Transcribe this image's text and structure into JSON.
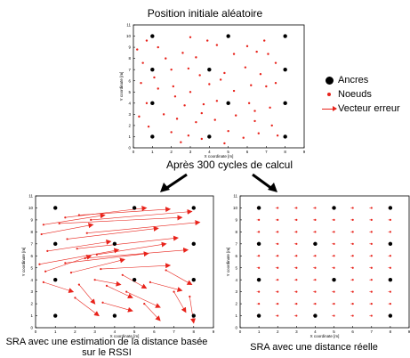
{
  "title_top": "Position initiale aléatoire",
  "caption_mid": "Après 300 cycles de calcul",
  "caption_left": "SRA avec une estimation de la distance basée sur le RSSI",
  "caption_right": "SRA avec une distance réelle",
  "legend": {
    "anchors": "Ancres",
    "nodes": "Noeuds",
    "error_vector": "Vecteur erreur"
  },
  "colors": {
    "anchor": "#000000",
    "node": "#e8231b",
    "axis": "#000000"
  },
  "chart_data": [
    {
      "id": "top",
      "type": "scatter",
      "xlabel": "X coordinate [m]",
      "ylabel": "Y coordinate [m]",
      "xlim": [
        0,
        9
      ],
      "ylim": [
        0,
        11
      ],
      "xticks": [
        0,
        1,
        2,
        3,
        4,
        5,
        6,
        7,
        8,
        9
      ],
      "yticks": [
        0,
        1,
        2,
        3,
        4,
        5,
        6,
        7,
        8,
        9,
        10,
        11
      ],
      "anchors": [
        [
          1,
          10
        ],
        [
          5,
          10
        ],
        [
          8,
          10
        ],
        [
          1,
          7
        ],
        [
          4,
          7
        ],
        [
          8,
          7
        ],
        [
          1,
          4
        ],
        [
          5,
          4
        ],
        [
          8,
          4
        ],
        [
          1,
          1
        ],
        [
          4,
          1
        ],
        [
          8,
          1
        ]
      ],
      "nodes": [
        [
          0.2,
          8.8
        ],
        [
          0.7,
          9.6
        ],
        [
          1.3,
          9.0
        ],
        [
          2.6,
          8.5
        ],
        [
          3.3,
          8.1
        ],
        [
          3.9,
          9.6
        ],
        [
          4.4,
          9.2
        ],
        [
          6.0,
          9.1
        ],
        [
          6.5,
          8.6
        ],
        [
          7.1,
          8.4
        ],
        [
          0.5,
          7.6
        ],
        [
          2.0,
          7.0
        ],
        [
          2.9,
          7.1
        ],
        [
          3.5,
          6.5
        ],
        [
          4.8,
          6.7
        ],
        [
          5.9,
          7.2
        ],
        [
          6.7,
          6.6
        ],
        [
          7.5,
          7.6
        ],
        [
          0.4,
          5.8
        ],
        [
          1.3,
          5.3
        ],
        [
          2.1,
          5.5
        ],
        [
          3.0,
          5.0
        ],
        [
          4.0,
          5.7
        ],
        [
          5.3,
          5.1
        ],
        [
          6.2,
          5.6
        ],
        [
          7.0,
          5.5
        ],
        [
          7.5,
          5.8
        ],
        [
          0.7,
          4.0
        ],
        [
          2.2,
          4.6
        ],
        [
          2.7,
          3.8
        ],
        [
          3.7,
          3.9
        ],
        [
          4.4,
          4.2
        ],
        [
          6.1,
          4.0
        ],
        [
          7.2,
          3.6
        ],
        [
          0.3,
          2.8
        ],
        [
          1.6,
          3.0
        ],
        [
          2.3,
          2.6
        ],
        [
          3.3,
          2.3
        ],
        [
          4.3,
          2.5
        ],
        [
          5.4,
          2.9
        ],
        [
          6.4,
          2.4
        ],
        [
          7.3,
          2.0
        ],
        [
          0.8,
          1.9
        ],
        [
          2.0,
          1.4
        ],
        [
          2.9,
          1.1
        ],
        [
          3.6,
          0.8
        ],
        [
          5.0,
          1.5
        ],
        [
          5.8,
          0.9
        ],
        [
          6.6,
          1.3
        ],
        [
          7.6,
          1.1
        ],
        [
          3.0,
          9.9
        ],
        [
          1.7,
          8.0
        ],
        [
          5.3,
          8.4
        ],
        [
          4.6,
          6.1
        ],
        [
          6.9,
          9.6
        ],
        [
          2.5,
          0.5
        ],
        [
          4.8,
          0.4
        ],
        [
          6.4,
          3.3
        ],
        [
          1.1,
          6.3
        ],
        [
          3.6,
          3.1
        ]
      ]
    },
    {
      "id": "bottom-left",
      "type": "scatter",
      "xlabel": "X coordinate [m]",
      "ylabel": "Y coordinate [m]",
      "xlim": [
        0,
        9
      ],
      "ylim": [
        0,
        11
      ],
      "xticks": [
        0,
        1,
        2,
        3,
        4,
        5,
        6,
        7,
        8,
        9
      ],
      "yticks": [
        0,
        1,
        2,
        3,
        4,
        5,
        6,
        7,
        8,
        9,
        10,
        11
      ],
      "anchors": [
        [
          1,
          10
        ],
        [
          5,
          10
        ],
        [
          8,
          10
        ],
        [
          1,
          7
        ],
        [
          4,
          7
        ],
        [
          8,
          7
        ],
        [
          1,
          4
        ],
        [
          5,
          4
        ],
        [
          8,
          4
        ],
        [
          1,
          1
        ],
        [
          4,
          1
        ],
        [
          8,
          1
        ]
      ],
      "error_vectors": [
        [
          [
            1.5,
            9.2
          ],
          [
            5.6,
            10.0
          ]
        ],
        [
          [
            2.2,
            9.4
          ],
          [
            6.8,
            9.9
          ]
        ],
        [
          [
            0.4,
            8.6
          ],
          [
            3.5,
            9.4
          ]
        ],
        [
          [
            1.2,
            8.7
          ],
          [
            7.4,
            9.2
          ]
        ],
        [
          [
            2.8,
            9.0
          ],
          [
            7.9,
            9.7
          ]
        ],
        [
          [
            0.3,
            7.8
          ],
          [
            2.9,
            8.6
          ]
        ],
        [
          [
            1.6,
            7.4
          ],
          [
            6.2,
            8.3
          ]
        ],
        [
          [
            2.6,
            7.9
          ],
          [
            8.3,
            8.8
          ]
        ],
        [
          [
            0.6,
            6.4
          ],
          [
            3.8,
            7.2
          ]
        ],
        [
          [
            2.1,
            6.6
          ],
          [
            7.2,
            7.5
          ]
        ],
        [
          [
            3.1,
            6.1
          ],
          [
            6.6,
            7.0
          ]
        ],
        [
          [
            0.2,
            5.3
          ],
          [
            4.2,
            6.5
          ]
        ],
        [
          [
            1.5,
            5.4
          ],
          [
            5.7,
            6.2
          ]
        ],
        [
          [
            2.5,
            5.8
          ],
          [
            7.7,
            6.5
          ]
        ],
        [
          [
            0.5,
            4.7
          ],
          [
            2.8,
            6.0
          ]
        ],
        [
          [
            1.8,
            4.6
          ],
          [
            4.5,
            5.7
          ]
        ],
        [
          [
            3.3,
            4.9
          ],
          [
            6.8,
            5.2
          ]
        ],
        [
          [
            0.4,
            3.8
          ],
          [
            1.9,
            3.0
          ]
        ],
        [
          [
            2.2,
            3.6
          ],
          [
            3.0,
            2.0
          ]
        ],
        [
          [
            3.6,
            3.5
          ],
          [
            4.9,
            2.5
          ]
        ],
        [
          [
            2.0,
            2.5
          ],
          [
            3.2,
            1.0
          ]
        ],
        [
          [
            3.4,
            2.1
          ],
          [
            4.9,
            1.4
          ]
        ],
        [
          [
            4.6,
            3.0
          ],
          [
            6.3,
            1.7
          ]
        ],
        [
          [
            5.8,
            3.8
          ],
          [
            7.4,
            3.1
          ]
        ],
        [
          [
            6.6,
            4.8
          ],
          [
            7.9,
            3.6
          ]
        ],
        [
          [
            7.0,
            3.0
          ],
          [
            7.6,
            1.3
          ]
        ],
        [
          [
            5.5,
            2.0
          ],
          [
            6.3,
            0.6
          ]
        ],
        [
          [
            7.8,
            2.6
          ],
          [
            8.0,
            0.4
          ]
        ],
        [
          [
            4.4,
            4.4
          ],
          [
            5.6,
            3.3
          ]
        ],
        [
          [
            3.0,
            4.0
          ],
          [
            4.3,
            3.6
          ]
        ]
      ]
    },
    {
      "id": "bottom-right",
      "type": "scatter",
      "xlabel": "X coordinate [m]",
      "ylabel": "Y coordinate [m]",
      "xlim": [
        0,
        9
      ],
      "ylim": [
        0,
        11
      ],
      "xticks": [
        0,
        1,
        2,
        3,
        4,
        5,
        6,
        7,
        8,
        9
      ],
      "yticks": [
        0,
        1,
        2,
        3,
        4,
        5,
        6,
        7,
        8,
        9,
        10,
        11
      ],
      "anchors": [
        [
          1,
          10
        ],
        [
          5,
          10
        ],
        [
          8,
          10
        ],
        [
          1,
          7
        ],
        [
          4,
          7
        ],
        [
          8,
          7
        ],
        [
          1,
          4
        ],
        [
          5,
          4
        ],
        [
          8,
          4
        ],
        [
          1,
          1
        ],
        [
          4,
          1
        ],
        [
          8,
          1
        ]
      ],
      "grid_nodes_x": [
        1,
        2,
        3,
        4,
        5,
        6,
        7,
        8
      ],
      "grid_nodes_y": [
        1,
        2,
        3,
        4,
        5,
        6,
        7,
        8,
        9,
        10
      ]
    }
  ]
}
